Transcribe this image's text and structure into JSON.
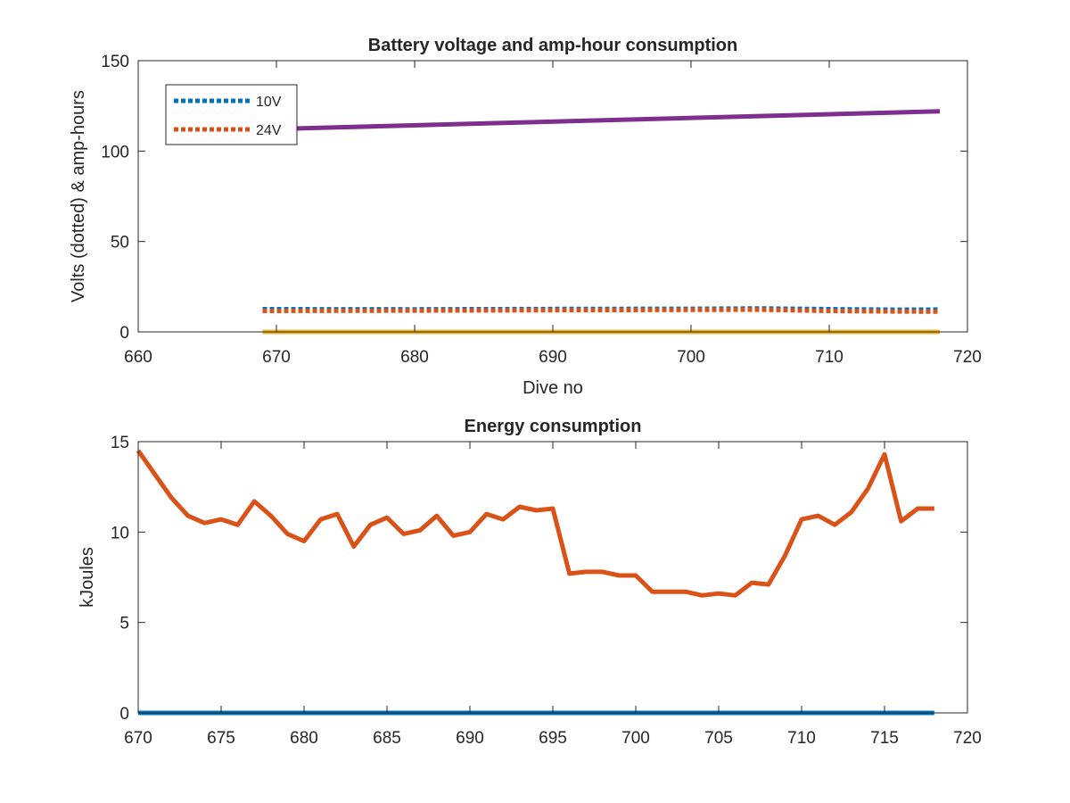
{
  "chart_data": [
    {
      "type": "line",
      "title": "Battery voltage and amp-hour consumption",
      "xlabel": "Dive no",
      "ylabel": "Volts (dotted) & amp-hours",
      "xlim": [
        660,
        720
      ],
      "ylim": [
        0,
        150
      ],
      "xticks": [
        660,
        670,
        680,
        690,
        700,
        710,
        720
      ],
      "yticks": [
        0,
        50,
        100,
        150
      ],
      "grid": false,
      "legend_position": "top-left",
      "legend": [
        "10V",
        "24V"
      ],
      "series": [
        {
          "name": "10V",
          "style": "dotted",
          "color": "#0072bd",
          "x": [
            669,
            680,
            690,
            700,
            705,
            710,
            715,
            718
          ],
          "y": [
            12.6,
            12.5,
            12.7,
            12.8,
            13.0,
            12.6,
            12.3,
            12.4
          ]
        },
        {
          "name": "24V",
          "style": "dotted",
          "color": "#d95319",
          "x": [
            669,
            680,
            690,
            700,
            705,
            710,
            715,
            718
          ],
          "y": [
            11.6,
            11.8,
            12.0,
            12.2,
            12.3,
            11.6,
            11.3,
            11.2
          ]
        },
        {
          "style": "solid",
          "color": "#7e2f8e",
          "x": [
            669,
            718
          ],
          "y": [
            112,
            122
          ]
        },
        {
          "style": "solid",
          "color": "#edb120",
          "x": [
            669,
            718
          ],
          "y": [
            0,
            0
          ]
        }
      ]
    },
    {
      "type": "line",
      "title": "Energy consumption",
      "xlabel": "",
      "ylabel": "kJoules",
      "xlim": [
        670,
        720
      ],
      "ylim": [
        0,
        15
      ],
      "xticks": [
        670,
        675,
        680,
        685,
        690,
        695,
        700,
        705,
        710,
        715,
        720
      ],
      "yticks": [
        0,
        5,
        10,
        15
      ],
      "grid": false,
      "series": [
        {
          "style": "solid",
          "color": "#d95319",
          "x": [
            670,
            671,
            672,
            673,
            674,
            675,
            676,
            677,
            678,
            679,
            680,
            681,
            682,
            683,
            684,
            685,
            686,
            687,
            688,
            689,
            690,
            691,
            692,
            693,
            694,
            695,
            696,
            697,
            698,
            699,
            700,
            701,
            702,
            703,
            704,
            705,
            706,
            707,
            708,
            709,
            710,
            711,
            712,
            713,
            714,
            715,
            716,
            717,
            718
          ],
          "y": [
            14.5,
            13.2,
            11.9,
            10.9,
            10.5,
            10.7,
            10.4,
            11.7,
            10.9,
            9.9,
            9.5,
            10.7,
            11.0,
            9.2,
            10.4,
            10.8,
            9.9,
            10.1,
            10.9,
            9.8,
            10.0,
            11.0,
            10.7,
            11.4,
            11.2,
            11.3,
            7.7,
            7.8,
            7.8,
            7.6,
            7.6,
            6.7,
            6.7,
            6.7,
            6.5,
            6.6,
            6.5,
            7.2,
            7.1,
            8.7,
            10.7,
            10.9,
            10.4,
            11.1,
            12.4,
            14.3,
            10.6,
            11.3,
            11.3
          ]
        },
        {
          "style": "solid",
          "color": "#0072bd",
          "x": [
            670,
            718
          ],
          "y": [
            0,
            0
          ]
        }
      ]
    }
  ]
}
